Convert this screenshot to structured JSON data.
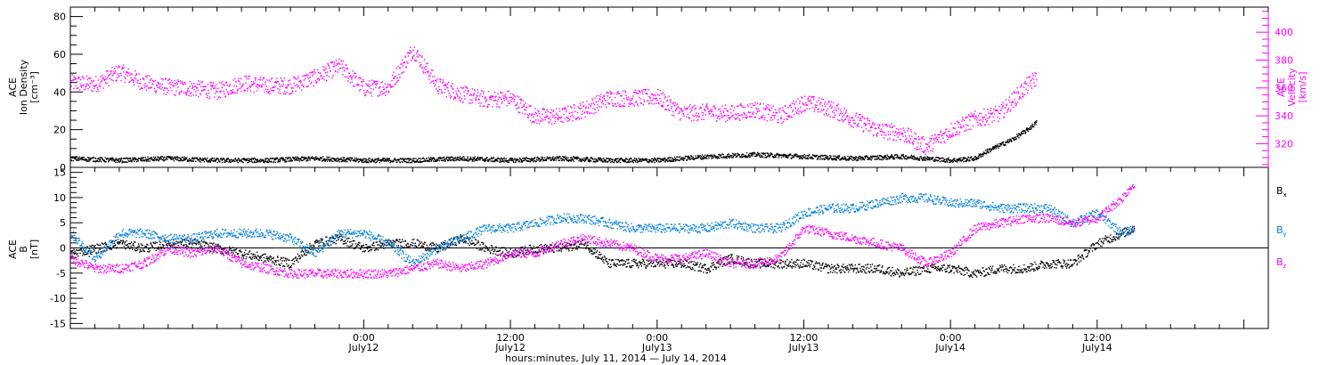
{
  "chart_data": [
    {
      "type": "scatter",
      "panel": "top",
      "ylabel_left": [
        "ACE",
        "Ion Density",
        "[cm⁻³]"
      ],
      "ylabel_right": [
        "ACE",
        "Velocity",
        "[km/s]"
      ],
      "ylim_left": [
        0,
        85
      ],
      "ylim_right": [
        303,
        418
      ],
      "yticks_left": [
        "0",
        "20",
        "40",
        "60",
        "80"
      ],
      "yticks_right": [
        "320",
        "340",
        "360",
        "380",
        "400"
      ],
      "colors": {
        "density": "#000000",
        "velocity": "#ff00ff"
      },
      "series": [
        {
          "key": "density",
          "axis": "left",
          "x": [
            0,
            4,
            8,
            12,
            16,
            20,
            24,
            28,
            32,
            36,
            40,
            44,
            48,
            52,
            56,
            60,
            64,
            68,
            70,
            72,
            74,
            75,
            76,
            77,
            78,
            79
          ],
          "y": [
            5,
            4,
            5,
            4,
            4,
            5,
            4,
            4,
            5,
            4,
            5,
            4,
            4,
            6,
            7,
            6,
            5,
            6,
            5,
            4,
            5,
            9,
            12,
            15,
            19,
            24
          ]
        },
        {
          "key": "velocity",
          "axis": "right",
          "x": [
            0,
            2,
            4,
            6,
            8,
            10,
            12,
            14,
            16,
            18,
            20,
            22,
            24,
            26,
            28,
            30,
            32,
            34,
            36,
            38,
            40,
            42,
            44,
            46,
            48,
            50,
            52,
            54,
            56,
            58,
            60,
            62,
            64,
            66,
            68,
            70,
            72,
            74,
            76,
            78,
            79
          ],
          "y": [
            364,
            363,
            372,
            364,
            361,
            360,
            358,
            364,
            362,
            362,
            368,
            376,
            360,
            361,
            388,
            362,
            356,
            352,
            353,
            340,
            340,
            345,
            353,
            353,
            354,
            342,
            343,
            342,
            345,
            340,
            350,
            346,
            338,
            330,
            328,
            318,
            330,
            338,
            342,
            360,
            368
          ]
        }
      ]
    },
    {
      "type": "scatter",
      "panel": "bottom",
      "ylabel_left": [
        "ACE",
        "B",
        "[nT]"
      ],
      "ylim": [
        -16,
        16
      ],
      "yticks": [
        "-15",
        "-10",
        "-5",
        "0",
        "5",
        "10",
        "15"
      ],
      "legend_position": "right",
      "x_start": "00:00 July 11, 2014",
      "x_unit": "hours",
      "xlim": [
        0,
        98
      ],
      "xticks": [
        {
          "x": 24,
          "time": "0:00",
          "date": "July12"
        },
        {
          "x": 36,
          "time": "12:00",
          "date": "July12"
        },
        {
          "x": 48,
          "time": "0:00",
          "date": "July13"
        },
        {
          "x": 60,
          "time": "12:00",
          "date": "July13"
        },
        {
          "x": 72,
          "time": "0:00",
          "date": "July14"
        },
        {
          "x": 84,
          "time": "12:00",
          "date": "July14"
        }
      ],
      "xlabel": "hours:minutes, July 11, 2014 — July 14, 2014",
      "series": [
        {
          "name": "Bx",
          "base": "B",
          "sub": "x",
          "color": "#000000",
          "x": [
            0,
            2,
            4,
            6,
            8,
            10,
            12,
            14,
            16,
            18,
            20,
            22,
            24,
            26,
            28,
            30,
            32,
            34,
            36,
            38,
            40,
            42,
            44,
            46,
            48,
            50,
            52,
            54,
            56,
            58,
            60,
            62,
            64,
            66,
            68,
            70,
            72,
            74,
            76,
            78,
            80,
            82,
            84,
            86,
            87
          ],
          "y": [
            -1,
            0,
            1,
            0,
            1,
            1,
            0,
            -1,
            -2,
            -3,
            1,
            2,
            0,
            1,
            1,
            0,
            2,
            0,
            -1,
            0,
            0,
            1,
            -3,
            -3,
            -3,
            -3,
            -4,
            -2,
            -3,
            -3,
            -3,
            -4,
            -4,
            -4,
            -5,
            -4,
            -4,
            -5,
            -4,
            -4,
            -3,
            -3,
            1,
            3,
            4
          ]
        },
        {
          "name": "By",
          "base": "B",
          "sub": "y",
          "color": "#0080e0",
          "x": [
            0,
            2,
            4,
            6,
            8,
            10,
            12,
            14,
            16,
            18,
            20,
            22,
            24,
            26,
            28,
            30,
            32,
            34,
            36,
            38,
            40,
            42,
            44,
            46,
            48,
            50,
            52,
            54,
            56,
            58,
            60,
            62,
            64,
            66,
            68,
            70,
            72,
            74,
            76,
            78,
            80,
            82,
            84,
            86,
            87
          ],
          "y": [
            3,
            -2,
            3,
            3,
            2,
            2,
            3,
            3,
            3,
            2,
            -1,
            3,
            3,
            1,
            -3,
            0,
            2,
            4,
            4,
            5,
            6,
            6,
            5,
            4,
            4,
            4,
            4,
            5,
            4,
            4,
            7,
            8,
            8,
            9,
            10,
            10,
            9,
            9,
            8,
            8,
            8,
            5,
            7,
            3,
            4
          ]
        },
        {
          "name": "Bz",
          "base": "B",
          "sub": "z",
          "color": "#ff00ff",
          "x": [
            0,
            2,
            4,
            6,
            8,
            10,
            12,
            14,
            16,
            18,
            20,
            22,
            24,
            26,
            28,
            30,
            32,
            34,
            36,
            38,
            40,
            42,
            44,
            46,
            48,
            50,
            52,
            54,
            56,
            58,
            60,
            62,
            64,
            66,
            68,
            70,
            72,
            74,
            76,
            78,
            80,
            82,
            84,
            86,
            87
          ],
          "y": [
            -2,
            -4,
            -4,
            -3,
            0,
            -1,
            0,
            -3,
            -4,
            -5,
            -5,
            -5,
            -5,
            -5,
            -4,
            -3,
            -4,
            -3,
            -1,
            -1,
            1,
            2,
            1,
            0,
            -2,
            -2,
            -1,
            -3,
            -3,
            -2,
            4,
            3,
            2,
            1,
            0,
            -3,
            -1,
            4,
            5,
            6,
            6,
            5,
            6,
            10,
            13
          ]
        }
      ]
    }
  ]
}
